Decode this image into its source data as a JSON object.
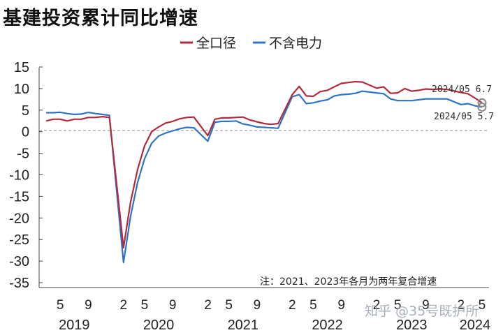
{
  "chart_data": {
    "type": "line",
    "title": "基建投资累计同比增速",
    "legend_position": "top",
    "ylim": [
      -35,
      15
    ],
    "yticks": [
      15,
      10,
      5,
      0,
      -5,
      -10,
      -15,
      -20,
      -25,
      -30,
      -35
    ],
    "xtick_labels": [
      "5",
      "9",
      "2",
      "5",
      "9",
      "2",
      "5",
      "9",
      "2",
      "5",
      "9",
      "2",
      "5",
      "9",
      "2",
      "5"
    ],
    "years": [
      "2019",
      "2020",
      "2021",
      "2022",
      "2023",
      "2024"
    ],
    "x": [
      "2019-03",
      "2019-04",
      "2019-05",
      "2019-06",
      "2019-07",
      "2019-08",
      "2019-09",
      "2019-10",
      "2019-11",
      "2019-12",
      "2020-02",
      "2020-03",
      "2020-04",
      "2020-05",
      "2020-06",
      "2020-07",
      "2020-08",
      "2020-09",
      "2020-10",
      "2020-11",
      "2020-12",
      "2021-02",
      "2021-03",
      "2021-04",
      "2021-05",
      "2021-06",
      "2021-07",
      "2021-08",
      "2021-09",
      "2021-10",
      "2021-11",
      "2021-12",
      "2022-02",
      "2022-03",
      "2022-04",
      "2022-05",
      "2022-06",
      "2022-07",
      "2022-08",
      "2022-09",
      "2022-10",
      "2022-11",
      "2022-12",
      "2023-02",
      "2023-03",
      "2023-04",
      "2023-05",
      "2023-06",
      "2023-07",
      "2023-08",
      "2023-09",
      "2023-10",
      "2023-11",
      "2023-12",
      "2024-02",
      "2024-03",
      "2024-04",
      "2024-05"
    ],
    "series": [
      {
        "name": "全口径",
        "color": "#b22a3d",
        "values": [
          2.5,
          2.9,
          2.9,
          2.5,
          2.9,
          2.9,
          3.3,
          3.3,
          3.5,
          3.3,
          -26.9,
          -16.4,
          -8.8,
          -3.3,
          0.0,
          1.1,
          2.0,
          2.4,
          3.0,
          3.3,
          3.4,
          -0.9,
          2.9,
          3.2,
          3.2,
          3.3,
          3.4,
          2.7,
          2.3,
          1.9,
          1.7,
          1.9,
          8.6,
          10.5,
          8.3,
          8.2,
          9.3,
          9.6,
          10.4,
          11.2,
          11.4,
          11.6,
          11.5,
          10.1,
          10.4,
          8.9,
          9.0,
          10.0,
          9.4,
          9.6,
          9.9,
          9.8,
          9.9,
          9.8,
          9.1,
          8.8,
          7.8,
          6.7
        ]
      },
      {
        "name": "不含电力",
        "color": "#2f73c4",
        "values": [
          4.4,
          4.4,
          4.5,
          4.2,
          4.0,
          4.1,
          4.5,
          4.2,
          4.0,
          3.8,
          -30.3,
          -19.7,
          -11.8,
          -6.3,
          -2.7,
          -1.0,
          -0.3,
          0.2,
          0.7,
          1.0,
          0.9,
          -2.2,
          2.2,
          2.4,
          2.4,
          2.5,
          1.8,
          1.5,
          1.1,
          1.0,
          0.9,
          0.8,
          8.1,
          8.6,
          6.5,
          6.7,
          7.1,
          7.4,
          8.3,
          8.6,
          8.7,
          8.9,
          9.4,
          9.0,
          8.8,
          7.6,
          7.2,
          7.2,
          7.2,
          7.4,
          7.6,
          7.6,
          7.6,
          7.6,
          6.3,
          6.5,
          6.0,
          5.7
        ]
      }
    ],
    "annotations": [
      "2024/05 6.7",
      "2024/05 5.7"
    ],
    "note": "注：2021、2023年各月为两年复合增速"
  },
  "watermark": "知乎 @35号既护所"
}
